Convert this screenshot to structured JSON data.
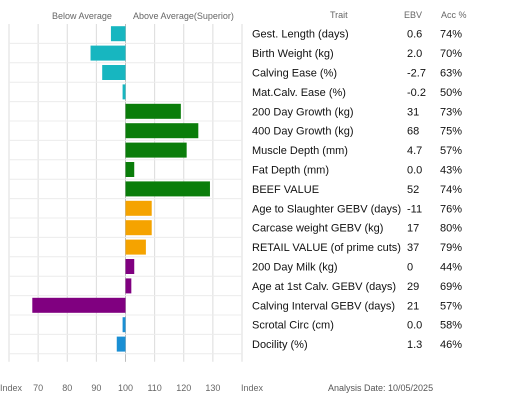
{
  "chart_data": {
    "type": "bar",
    "orientation": "horizontal",
    "baseline": 100,
    "xlim": [
      60,
      140
    ],
    "legend_left": "Below Average",
    "legend_right": "Above Average(Superior)",
    "columns": {
      "trait": "Trait",
      "ebv": "EBV",
      "acc": "Acc %"
    },
    "x_ticks": [
      "70",
      "80",
      "90",
      "100",
      "110",
      "120",
      "130"
    ],
    "x_ticks_values": [
      70,
      80,
      90,
      100,
      110,
      120,
      130
    ],
    "axis_left_label": "Index",
    "axis_right_label": "Index",
    "analysis_date": "Analysis Date: 10/05/2025",
    "rows": [
      {
        "trait": "Gest. Length (days)",
        "ebv": "0.6",
        "acc": "74%",
        "index": 95,
        "color": "#17b6c0"
      },
      {
        "trait": "Birth Weight (kg)",
        "ebv": "2.0",
        "acc": "70%",
        "index": 88,
        "color": "#17b6c0"
      },
      {
        "trait": "Calving Ease (%)",
        "ebv": "-2.7",
        "acc": "63%",
        "index": 92,
        "color": "#17b6c0"
      },
      {
        "trait": "Mat.Calv. Ease (%)",
        "ebv": "-0.2",
        "acc": "50%",
        "index": 99,
        "color": "#17b6c0"
      },
      {
        "trait": "200 Day Growth (kg)",
        "ebv": "31",
        "acc": "73%",
        "index": 119,
        "color": "#0a7d0a"
      },
      {
        "trait": "400 Day Growth (kg)",
        "ebv": "68",
        "acc": "75%",
        "index": 125,
        "color": "#0a7d0a"
      },
      {
        "trait": "Muscle Depth (mm)",
        "ebv": "4.7",
        "acc": "57%",
        "index": 121,
        "color": "#0a7d0a"
      },
      {
        "trait": "Fat Depth (mm)",
        "ebv": "0.0",
        "acc": "43%",
        "index": 103,
        "color": "#0a7d0a"
      },
      {
        "trait": "BEEF VALUE",
        "ebv": "52",
        "acc": "74%",
        "index": 129,
        "color": "#0a7d0a"
      },
      {
        "trait": "Age to Slaughter GEBV (days)",
        "ebv": "-11",
        "acc": "76%",
        "index": 109,
        "color": "#f5a300"
      },
      {
        "trait": "Carcase weight GEBV (kg)",
        "ebv": "17",
        "acc": "80%",
        "index": 109,
        "color": "#f5a300"
      },
      {
        "trait": "RETAIL VALUE (of prime cuts)",
        "ebv": "37",
        "acc": "79%",
        "index": 107,
        "color": "#f5a300"
      },
      {
        "trait": "200 Day Milk (kg)",
        "ebv": "0",
        "acc": "44%",
        "index": 103,
        "color": "#800080"
      },
      {
        "trait": "Age at 1st Calv. GEBV (days)",
        "ebv": "29",
        "acc": "69%",
        "index": 102,
        "color": "#800080"
      },
      {
        "trait": "Calving Interval GEBV (days)",
        "ebv": "21",
        "acc": "57%",
        "index": 68,
        "color": "#800080"
      },
      {
        "trait": "Scrotal Circ (cm)",
        "ebv": "0.0",
        "acc": "58%",
        "index": 99,
        "color": "#1a8fd4"
      },
      {
        "trait": "Docility (%)",
        "ebv": "1.3",
        "acc": "46%",
        "index": 97,
        "color": "#1a8fd4"
      }
    ]
  }
}
